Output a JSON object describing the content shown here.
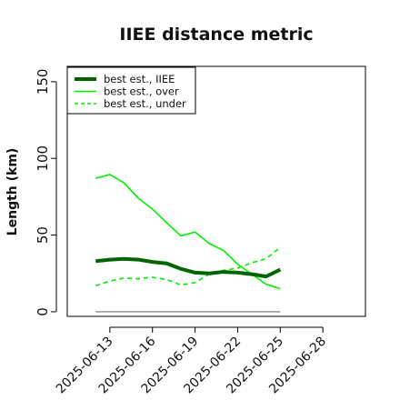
{
  "chart_data": {
    "type": "line",
    "title": "IIEE distance metric",
    "ylabel": "Length (km)",
    "xlabel": "",
    "ylim": [
      -3,
      160
    ],
    "xlim": [
      "2025-06-10",
      "2025-07-01"
    ],
    "x_tick_labels": [
      "2025-06-13",
      "2025-06-16",
      "2025-06-19",
      "2025-06-22",
      "2025-06-25",
      "2025-06-28"
    ],
    "y_tick_labels": [
      "0",
      "50",
      "100",
      "150"
    ],
    "y_ticks": [
      0,
      50,
      100,
      150
    ],
    "grid": false,
    "legend_position": "top-left",
    "x": [
      "2025-06-12",
      "2025-06-13",
      "2025-06-14",
      "2025-06-15",
      "2025-06-16",
      "2025-06-17",
      "2025-06-18",
      "2025-06-19",
      "2025-06-20",
      "2025-06-21",
      "2025-06-22",
      "2025-06-23",
      "2025-06-24",
      "2025-06-25"
    ],
    "series": [
      {
        "name": "best est., IIEE",
        "color": "#006400",
        "style": "solid-thick",
        "values": [
          33,
          34,
          34.5,
          34,
          32.5,
          31.5,
          28,
          25.5,
          25,
          26,
          25.5,
          24.5,
          23,
          27.5
        ]
      },
      {
        "name": "best est., over",
        "color": "#00ee00",
        "style": "solid",
        "values": [
          87,
          89.5,
          84,
          74,
          67,
          58,
          49.5,
          52,
          44.5,
          40,
          31,
          24.5,
          18,
          15
        ]
      },
      {
        "name": "best est., under",
        "color": "#00ee00",
        "style": "dashed",
        "values": [
          17,
          20,
          22,
          21.5,
          22.5,
          21,
          17.5,
          19,
          24.5,
          27,
          28.5,
          32,
          34.5,
          42
        ]
      },
      {
        "color": "#8c8c8c",
        "style": "solid-thin",
        "values": [
          0,
          0,
          0,
          0,
          0,
          0,
          0,
          0,
          0,
          0,
          0,
          0,
          0,
          0
        ]
      }
    ]
  }
}
